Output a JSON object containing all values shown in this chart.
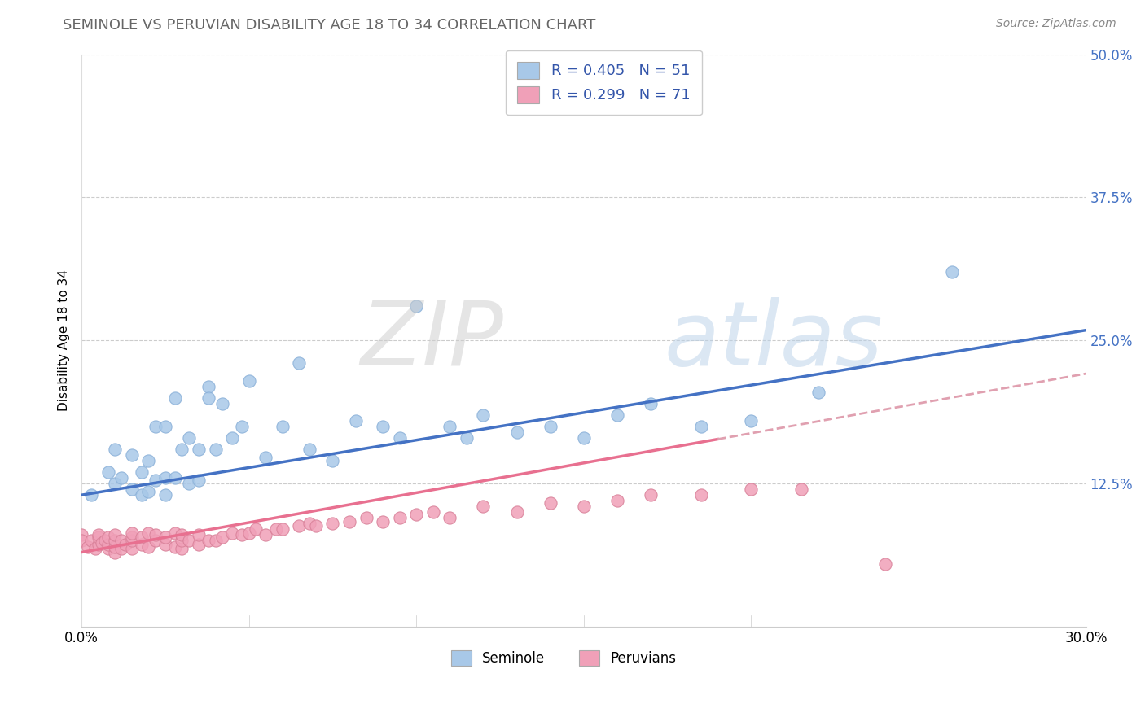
{
  "title": "SEMINOLE VS PERUVIAN DISABILITY AGE 18 TO 34 CORRELATION CHART",
  "source_text": "Source: ZipAtlas.com",
  "ylabel": "Disability Age 18 to 34",
  "xlim": [
    0.0,
    0.3
  ],
  "ylim": [
    0.0,
    0.5
  ],
  "ytick_positions": [
    0.125,
    0.25,
    0.375,
    0.5
  ],
  "ytick_labels": [
    "12.5%",
    "25.0%",
    "37.5%",
    "50.0%"
  ],
  "xtick_positions": [
    0.0,
    0.3
  ],
  "xtick_labels": [
    "0.0%",
    "30.0%"
  ],
  "seminole_R": 0.405,
  "seminole_N": 51,
  "peruvian_R": 0.299,
  "peruvian_N": 71,
  "seminole_color": "#a8c8e8",
  "peruvian_color": "#f0a0b8",
  "seminole_line_color": "#4472C4",
  "peruvian_line_color": "#e87090",
  "peruvian_dash_color": "#e0a0b0",
  "legend_seminole_label": "Seminole",
  "legend_peruvian_label": "Peruvians",
  "ytick_color": "#4472C4",
  "title_color": "#666666",
  "source_color": "#888888",
  "seminole_x": [
    0.003,
    0.008,
    0.01,
    0.01,
    0.012,
    0.015,
    0.015,
    0.018,
    0.018,
    0.02,
    0.02,
    0.022,
    0.022,
    0.025,
    0.025,
    0.025,
    0.028,
    0.028,
    0.03,
    0.032,
    0.032,
    0.035,
    0.035,
    0.038,
    0.038,
    0.04,
    0.042,
    0.045,
    0.048,
    0.05,
    0.055,
    0.06,
    0.065,
    0.068,
    0.075,
    0.082,
    0.09,
    0.095,
    0.1,
    0.11,
    0.115,
    0.12,
    0.13,
    0.14,
    0.15,
    0.16,
    0.17,
    0.185,
    0.2,
    0.22,
    0.26
  ],
  "seminole_y": [
    0.115,
    0.135,
    0.125,
    0.155,
    0.13,
    0.12,
    0.15,
    0.115,
    0.135,
    0.118,
    0.145,
    0.128,
    0.175,
    0.115,
    0.13,
    0.175,
    0.13,
    0.2,
    0.155,
    0.125,
    0.165,
    0.128,
    0.155,
    0.21,
    0.2,
    0.155,
    0.195,
    0.165,
    0.175,
    0.215,
    0.148,
    0.175,
    0.23,
    0.155,
    0.145,
    0.18,
    0.175,
    0.165,
    0.28,
    0.175,
    0.165,
    0.185,
    0.17,
    0.175,
    0.165,
    0.185,
    0.195,
    0.175,
    0.18,
    0.205,
    0.31
  ],
  "peruvian_x": [
    0.0,
    0.0,
    0.002,
    0.003,
    0.004,
    0.005,
    0.005,
    0.005,
    0.006,
    0.007,
    0.008,
    0.008,
    0.008,
    0.01,
    0.01,
    0.01,
    0.01,
    0.012,
    0.012,
    0.013,
    0.015,
    0.015,
    0.015,
    0.015,
    0.018,
    0.018,
    0.02,
    0.02,
    0.022,
    0.022,
    0.025,
    0.025,
    0.028,
    0.028,
    0.03,
    0.03,
    0.03,
    0.032,
    0.035,
    0.035,
    0.038,
    0.04,
    0.042,
    0.045,
    0.048,
    0.05,
    0.052,
    0.055,
    0.058,
    0.06,
    0.065,
    0.068,
    0.07,
    0.075,
    0.08,
    0.085,
    0.09,
    0.095,
    0.1,
    0.105,
    0.11,
    0.12,
    0.13,
    0.14,
    0.15,
    0.16,
    0.17,
    0.185,
    0.2,
    0.215,
    0.24
  ],
  "peruvian_y": [
    0.08,
    0.075,
    0.07,
    0.075,
    0.068,
    0.072,
    0.078,
    0.08,
    0.073,
    0.075,
    0.068,
    0.072,
    0.078,
    0.065,
    0.07,
    0.075,
    0.08,
    0.068,
    0.075,
    0.072,
    0.068,
    0.075,
    0.078,
    0.082,
    0.072,
    0.078,
    0.07,
    0.082,
    0.075,
    0.08,
    0.072,
    0.078,
    0.07,
    0.082,
    0.068,
    0.075,
    0.08,
    0.075,
    0.072,
    0.08,
    0.075,
    0.075,
    0.078,
    0.082,
    0.08,
    0.082,
    0.085,
    0.08,
    0.085,
    0.085,
    0.088,
    0.09,
    0.088,
    0.09,
    0.092,
    0.095,
    0.092,
    0.095,
    0.098,
    0.1,
    0.095,
    0.105,
    0.1,
    0.108,
    0.105,
    0.11,
    0.115,
    0.115,
    0.12,
    0.12,
    0.055
  ],
  "seminole_line_intercept": 0.115,
  "seminole_line_slope": 0.48,
  "peruvian_line_intercept": 0.065,
  "peruvian_line_slope": 0.52,
  "peruvian_dash_split": 0.19
}
